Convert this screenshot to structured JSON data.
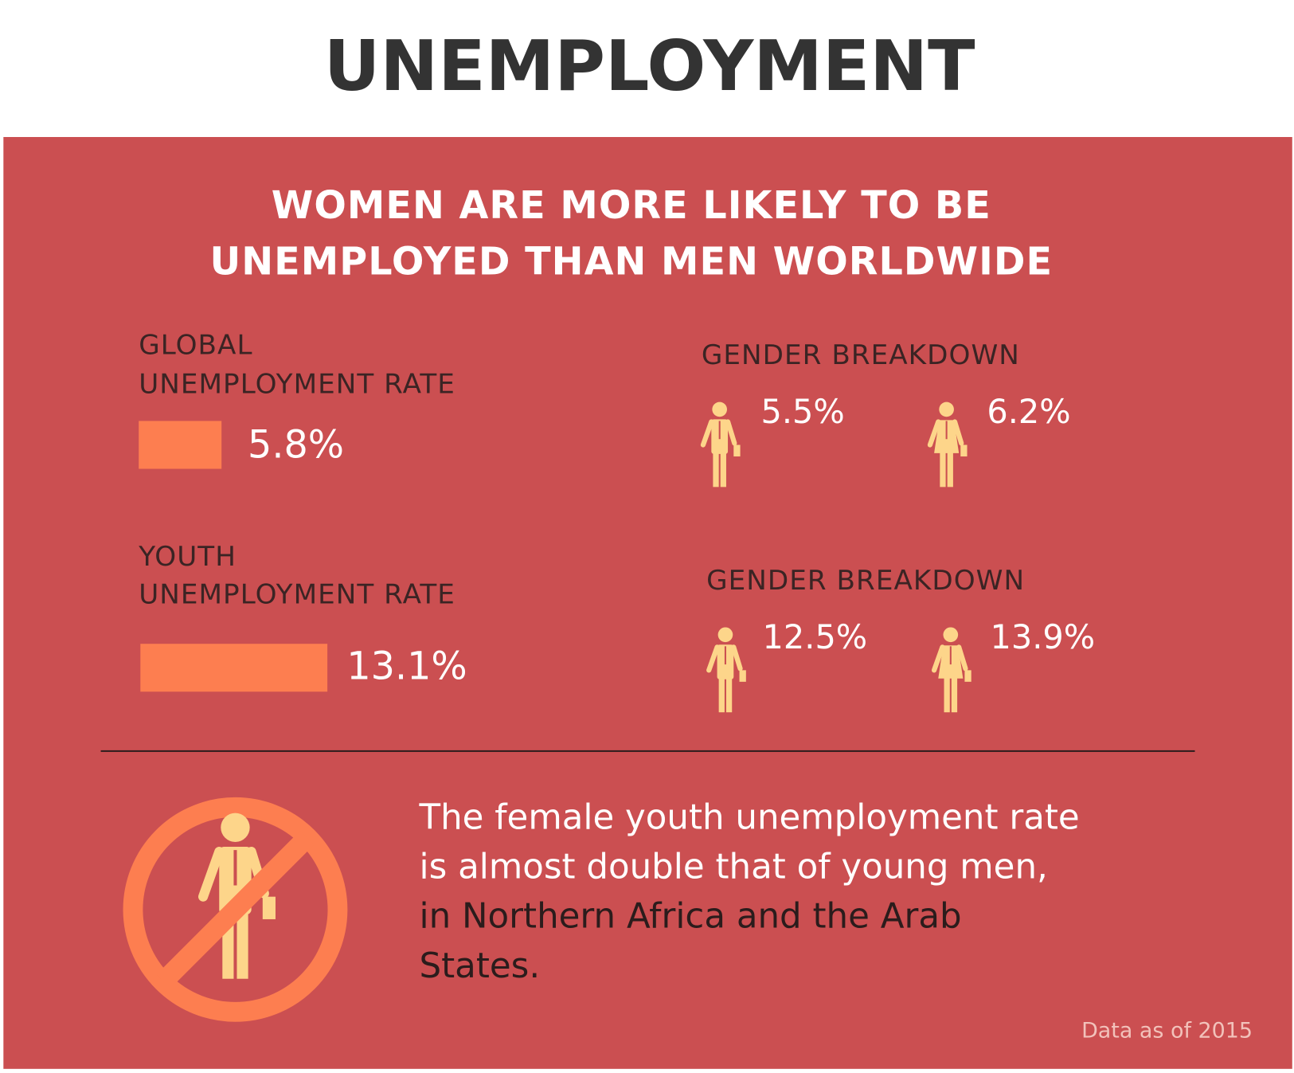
{
  "header": {
    "title": "UNEMPLOYMENT"
  },
  "panel": {
    "headline": [
      "WOMEN ARE MORE LIKELY TO BE",
      "UNEMPLOYED THAN MEN WORLDWIDE"
    ],
    "rows": [
      {
        "label": [
          "GLOBAL",
          "UNEMPLOYMENT RATE"
        ],
        "value": 5.8,
        "value_label": "5.8%",
        "breakdown_title": "GENDER BREAKDOWN",
        "men": "5.5%",
        "women": "6.2%"
      },
      {
        "label": [
          "YOUTH",
          "UNEMPLOYMENT RATE"
        ],
        "value": 13.1,
        "value_label": "13.1%",
        "breakdown_title": "GENDER BREAKDOWN",
        "men": "12.5%",
        "women": "13.9%"
      }
    ],
    "note": [
      "The female youth unemployment rate",
      "is almost double that of young men,",
      "in Northern Africa and the Arab",
      "States."
    ],
    "source": "Data as of 2015"
  }
}
